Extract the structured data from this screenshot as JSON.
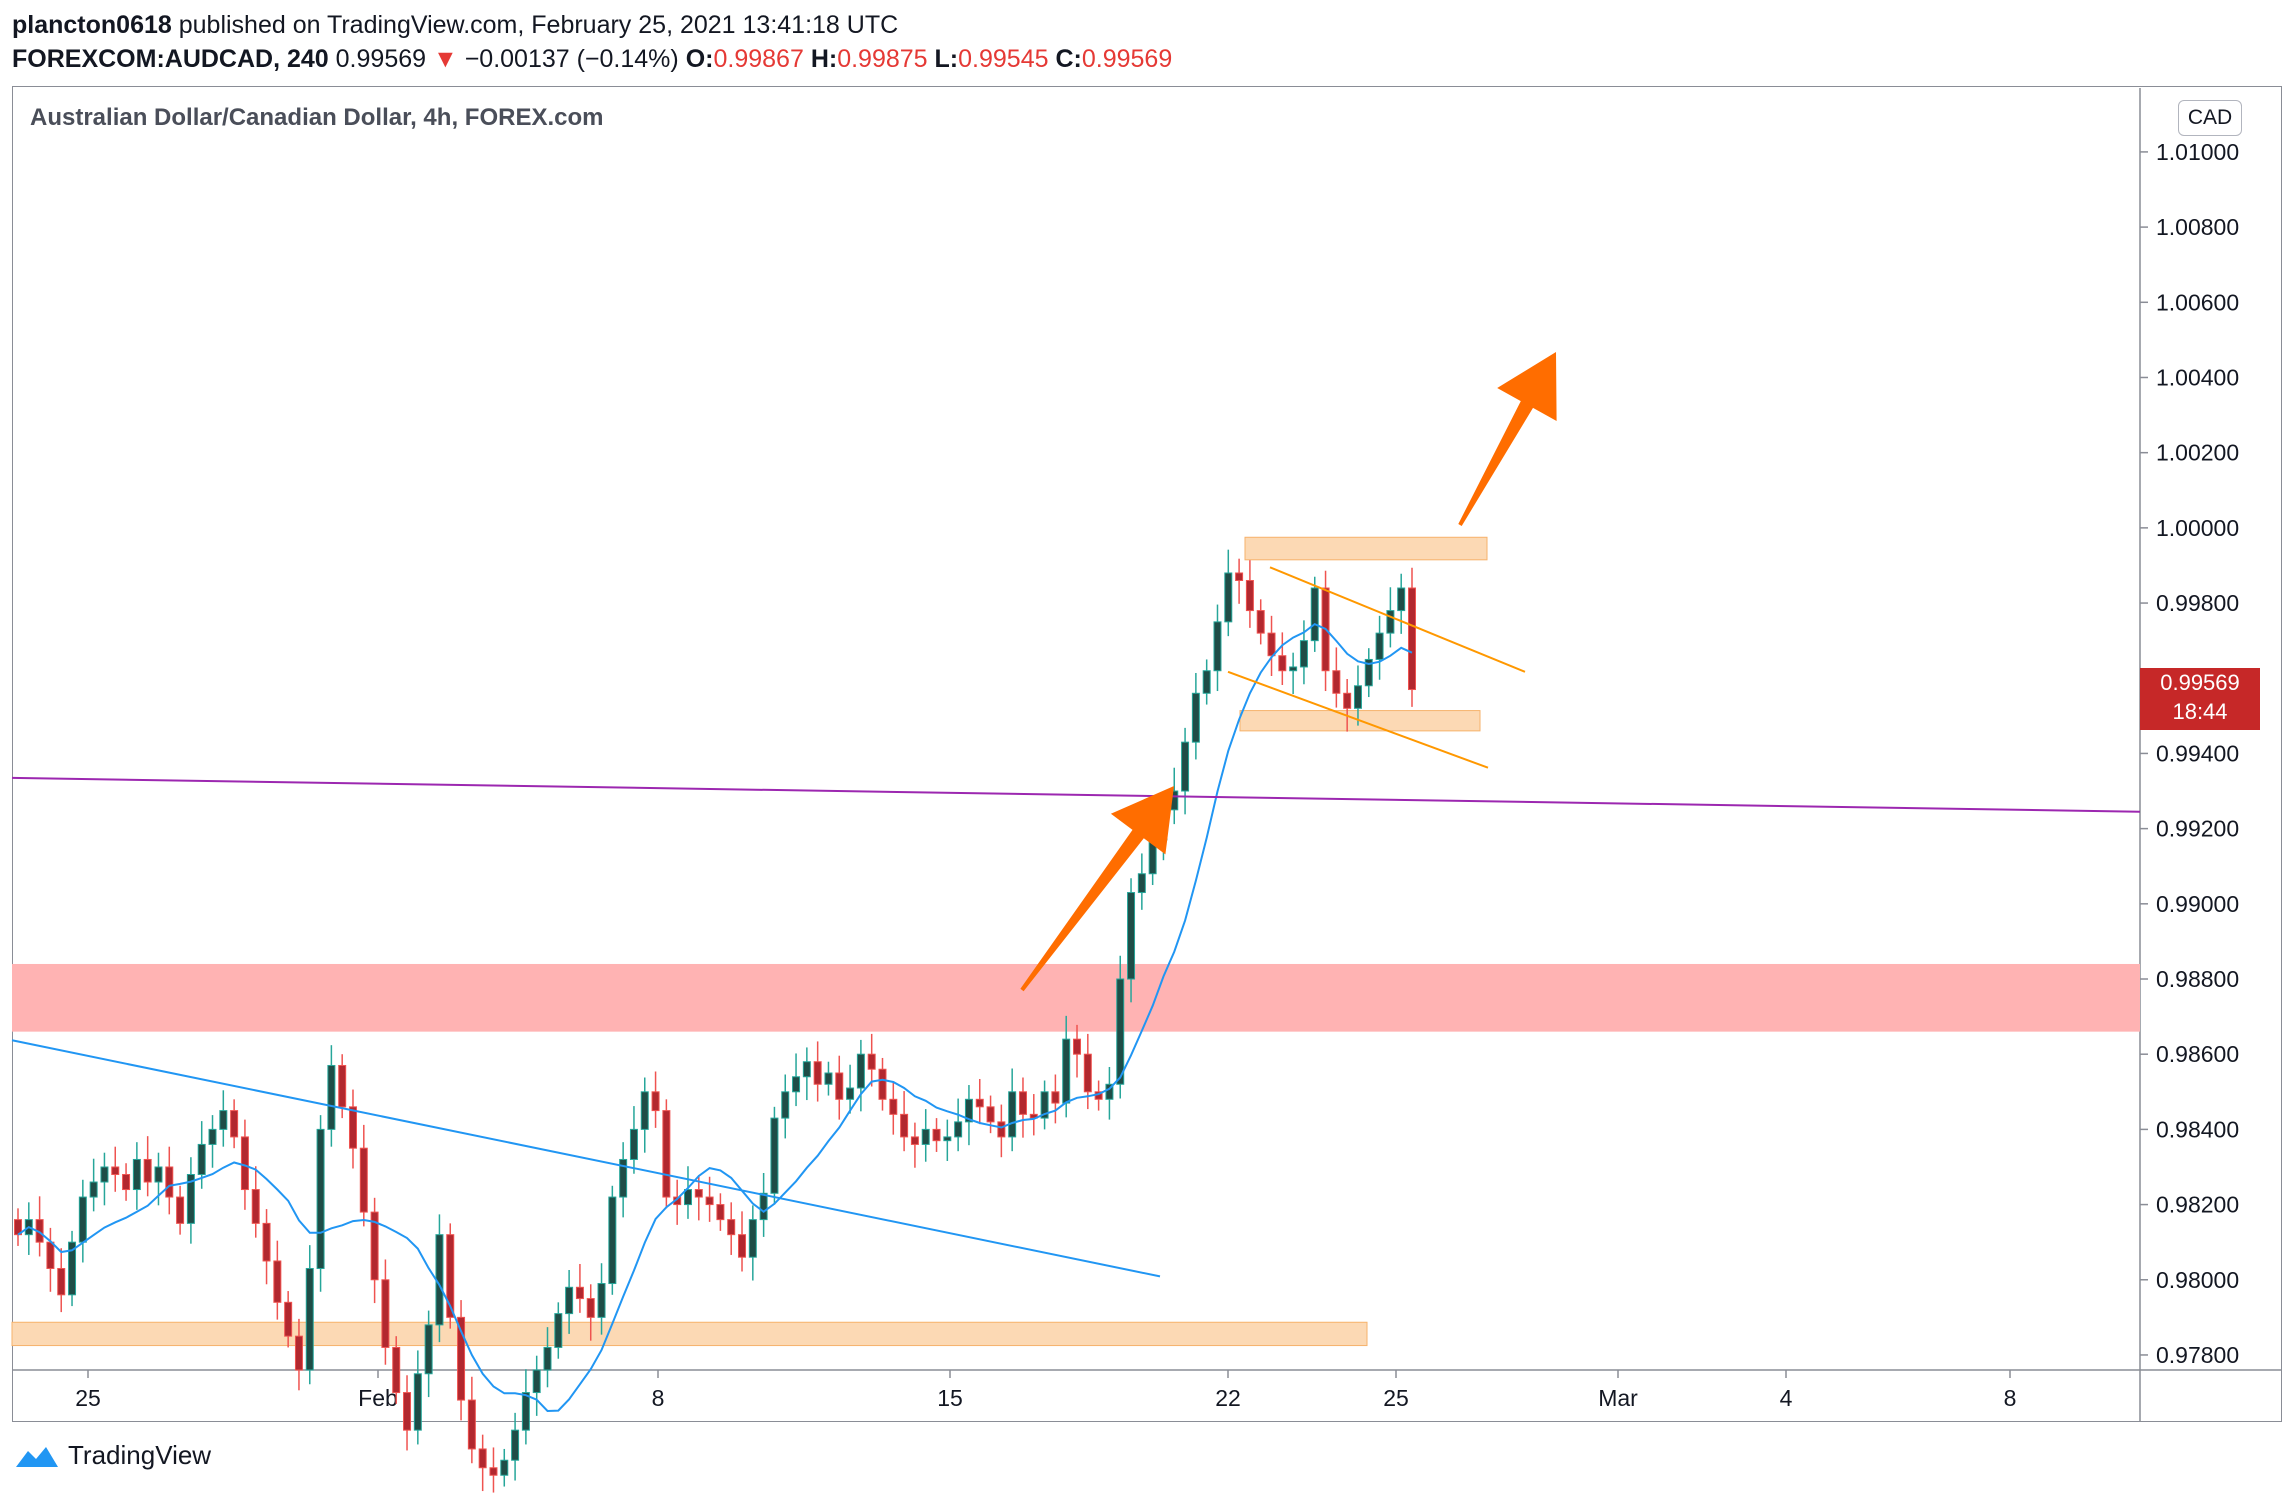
{
  "header": {
    "author": "plancton0618",
    "published_text": "published on TradingView.com, February 25, 2021 13:41:18 UTC",
    "symbol": "FOREXCOM:AUDCAD, 240",
    "last_price": "0.99569",
    "change": "−0.00137 (−0.14%)",
    "open_label": "O:",
    "open": "0.99867",
    "high_label": "H:",
    "high": "0.99875",
    "low_label": "L:",
    "low": "0.99545",
    "close_label": "C:",
    "close": "0.99569",
    "down_arrow": "▼"
  },
  "chart_title": "Australian Dollar/Canadian Dollar, 4h, FOREX.com",
  "currency": "CAD",
  "price_label": {
    "price": "0.99569",
    "countdown": "18:44"
  },
  "brand": "TradingView",
  "colors": {
    "up": "#26a69a",
    "down": "#ef5350",
    "candle_body_up": "#1f4d47",
    "candle_body_down": "#b2282f",
    "ma": "#2196f3",
    "trendline_blue": "#2196f3",
    "trendline_purple": "#9c27b0",
    "zone_red": "#ffb3b3",
    "zone_orange": "#fcd9b4",
    "arrow": "#ff6d00",
    "channel": "#ff9800"
  },
  "chart_data": {
    "type": "candlestick",
    "y_axis": {
      "min": 0.9776,
      "max": 1.0117,
      "ticks": [
        "1.01000",
        "1.00800",
        "1.00600",
        "1.00400",
        "1.00200",
        "1.00000",
        "0.99800",
        "0.99600",
        "0.99400",
        "0.99200",
        "0.99000",
        "0.98800",
        "0.98600",
        "0.98400",
        "0.98200",
        "0.98000",
        "0.97800"
      ],
      "tick_values": [
        1.01,
        1.008,
        1.006,
        1.004,
        1.002,
        1.0,
        0.998,
        0.996,
        0.994,
        0.992,
        0.99,
        0.988,
        0.986,
        0.984,
        0.982,
        0.98,
        0.978
      ]
    },
    "x_axis": {
      "labels": [
        "25",
        "Feb",
        "8",
        "15",
        "22",
        "25",
        "Mar",
        "4",
        "8"
      ]
    },
    "close_series": [
      0.9812,
      0.9816,
      0.981,
      0.9803,
      0.9796,
      0.981,
      0.9822,
      0.9826,
      0.983,
      0.9828,
      0.9824,
      0.9832,
      0.9826,
      0.983,
      0.9822,
      0.9815,
      0.9828,
      0.9836,
      0.984,
      0.9845,
      0.9838,
      0.9824,
      0.9815,
      0.9805,
      0.9794,
      0.9785,
      0.9776,
      0.9803,
      0.984,
      0.9857,
      0.9846,
      0.9835,
      0.9818,
      0.98,
      0.9782,
      0.977,
      0.976,
      0.9775,
      0.9788,
      0.9812,
      0.979,
      0.9768,
      0.9755,
      0.975,
      0.9748,
      0.9752,
      0.976,
      0.977,
      0.9776,
      0.9782,
      0.9791,
      0.9798,
      0.9795,
      0.979,
      0.9799,
      0.9822,
      0.9832,
      0.984,
      0.985,
      0.9845,
      0.9822,
      0.982,
      0.9824,
      0.9822,
      0.982,
      0.9816,
      0.9812,
      0.9806,
      0.9816,
      0.9823,
      0.9843,
      0.985,
      0.9854,
      0.9858,
      0.9852,
      0.9855,
      0.9848,
      0.9851,
      0.986,
      0.9856,
      0.9848,
      0.9844,
      0.9838,
      0.9836,
      0.984,
      0.9837,
      0.9838,
      0.9842,
      0.9848,
      0.9846,
      0.9842,
      0.9838,
      0.985,
      0.9844,
      0.9843,
      0.985,
      0.9847,
      0.9864,
      0.986,
      0.985,
      0.9848,
      0.9852,
      0.988,
      0.9903,
      0.9908,
      0.9917,
      0.9925,
      0.993,
      0.9943,
      0.9956,
      0.9962,
      0.9975,
      0.9988,
      0.9986,
      0.9978,
      0.9972,
      0.9966,
      0.9962,
      0.9963,
      0.997,
      0.9984,
      0.9962,
      0.9956,
      0.9952,
      0.9958,
      0.9965,
      0.9972,
      0.9978,
      0.9984,
      0.9957
    ],
    "moving_average_visible": true,
    "annotations": [
      "descending blue trendline",
      "purple trendline",
      "red resistance zone 0.9866-0.9884",
      "orange zone ~0.9785",
      "orange zones ~0.9997 and ~0.9948",
      "orange channel lines",
      "two orange arrows up"
    ]
  }
}
